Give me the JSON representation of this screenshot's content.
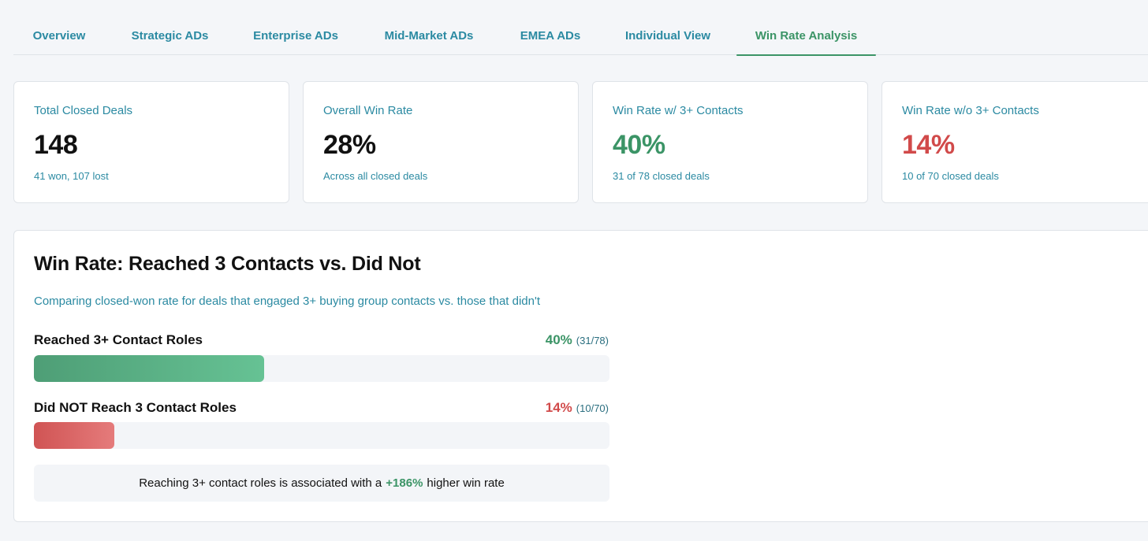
{
  "tabs": [
    {
      "label": "Overview"
    },
    {
      "label": "Strategic ADs"
    },
    {
      "label": "Enterprise ADs"
    },
    {
      "label": "Mid-Market ADs"
    },
    {
      "label": "EMEA ADs"
    },
    {
      "label": "Individual View"
    },
    {
      "label": "Win Rate Analysis",
      "active": true
    }
  ],
  "cards": [
    {
      "label": "Total Closed Deals",
      "value": "148",
      "sub": "41 won, 107 lost"
    },
    {
      "label": "Overall Win Rate",
      "value": "28%",
      "sub": "Across all closed deals"
    },
    {
      "label": "Win Rate w/ 3+ Contacts",
      "value": "40%",
      "sub": "31 of 78 closed deals"
    },
    {
      "label": "Win Rate w/o 3+ Contacts",
      "value": "14%",
      "sub": "10 of 70 closed deals"
    }
  ],
  "panel": {
    "title": "Win Rate: Reached 3 Contacts vs. Did Not",
    "description": "Comparing closed-won rate for deals that engaged 3+ buying group contacts vs. those that didn't",
    "rows": [
      {
        "label": "Reached 3+ Contact Roles",
        "pct": "40%",
        "fraction": "(31/78)",
        "fill": 0.4
      },
      {
        "label": "Did NOT Reach 3 Contact Roles",
        "pct": "14%",
        "fraction": "(10/70)",
        "fill": 0.14
      }
    ],
    "insight": {
      "prefix": "Reaching 3+ contact roles is associated with a",
      "highlight": "+186%",
      "suffix": "higher win rate"
    }
  },
  "colors": {
    "accent_teal": "#2b8aa2",
    "positive_green": "#3b9466",
    "negative_red": "#d14a4a"
  }
}
